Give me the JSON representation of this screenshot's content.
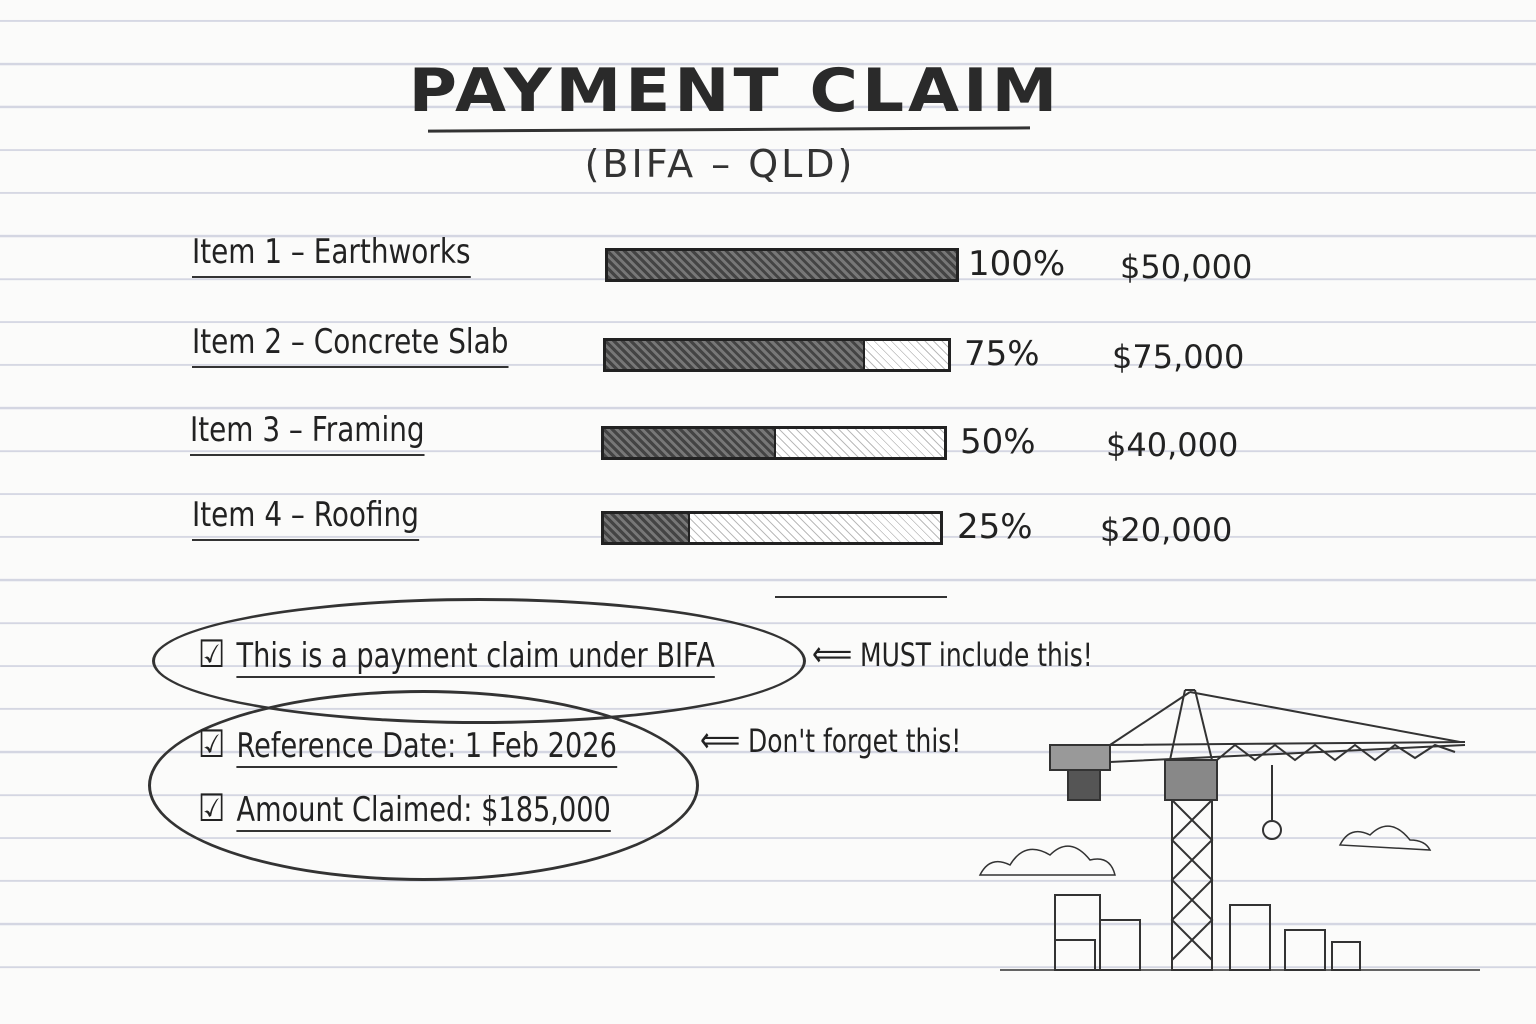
{
  "title": "PAYMENT CLAIM",
  "subtitle": "(BIFA – QLD)",
  "items": [
    {
      "label": "Item 1 – Earthworks",
      "percent": 100,
      "percent_label": "100%",
      "amount": "$50,000"
    },
    {
      "label": "Item 2 – Concrete Slab",
      "percent": 75,
      "percent_label": "75%",
      "amount": "$75,000"
    },
    {
      "label": "Item 3 – Framing",
      "percent": 50,
      "percent_label": "50%",
      "amount": "$40,000"
    },
    {
      "label": "Item 4 – Roofing",
      "percent": 25,
      "percent_label": "25%",
      "amount": "$20,000"
    }
  ],
  "checklist": [
    {
      "text": "This is a payment claim under BIFA",
      "checked": true
    },
    {
      "text": "Reference Date: 1 Feb 2026",
      "checked": true
    },
    {
      "text": "Amount Claimed: $185,000",
      "checked": true
    }
  ],
  "notes": {
    "must_include": "MUST include this!",
    "dont_forget": "Don't forget this!"
  },
  "icons": {
    "checkbox": "checked-box-icon",
    "arrow": "arrow-left-icon",
    "illustration": "crane-illustration"
  }
}
